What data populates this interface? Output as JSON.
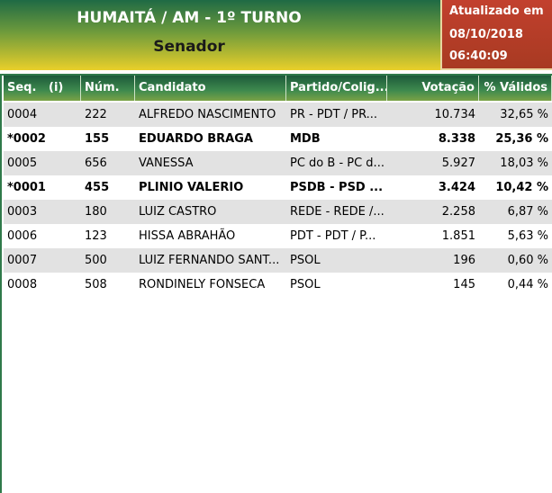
{
  "header": {
    "title": "HUMAITÁ / AM - 1º TURNO",
    "subtitle": "Senador"
  },
  "updated": {
    "label": "Atualizado em",
    "date": "08/10/2018",
    "time": "06:40:09"
  },
  "table": {
    "columns": [
      "Seq.   (i)",
      "Núm.",
      "Candidato",
      "Partido/Colig...",
      "Votação",
      "% Válidos"
    ],
    "rows": [
      [
        "0004",
        "222",
        "ALFREDO NASCIMENTO",
        "PR - PDT / PR...",
        "10.734",
        "32,65 %"
      ],
      [
        "*0002",
        "155",
        "EDUARDO BRAGA",
        "MDB",
        "8.338",
        "25,36 %"
      ],
      [
        "0005",
        "656",
        "VANESSA",
        "PC do B - PC d...",
        "5.927",
        "18,03 %"
      ],
      [
        "*0001",
        "455",
        "PLINIO VALERIO",
        "PSDB - PSD ...",
        "3.424",
        "10,42 %"
      ],
      [
        "0003",
        "180",
        "LUIZ CASTRO",
        "REDE - REDE /...",
        "2.258",
        "6,87 %"
      ],
      [
        "0006",
        "123",
        "HISSA ABRAHÃO",
        "PDT - PDT / P...",
        "1.851",
        "5,63 %"
      ],
      [
        "0007",
        "500",
        "LUIZ FERNANDO SANT...",
        "PSOL",
        "196",
        "0,60 %"
      ],
      [
        "0008",
        "508",
        "RONDINELY FONSECA",
        "PSOL",
        "145",
        "0,44 %"
      ]
    ]
  }
}
